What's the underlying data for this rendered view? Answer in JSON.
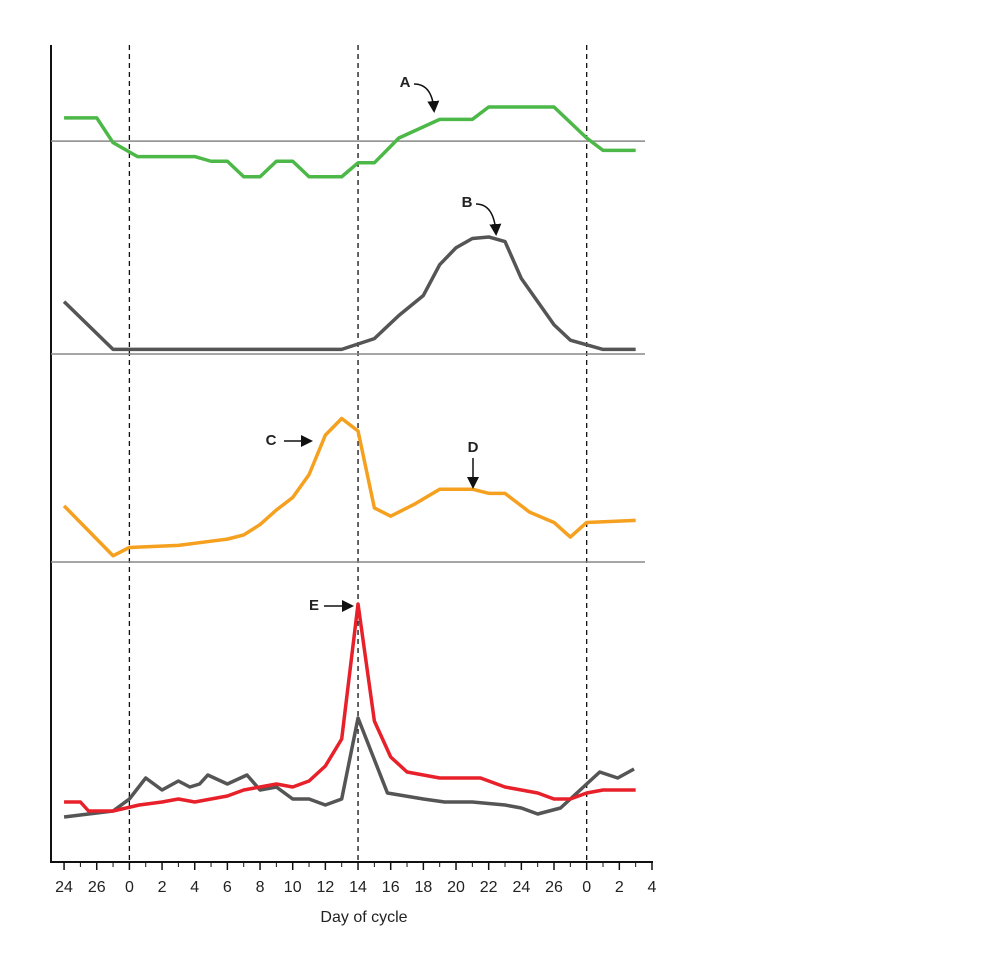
{
  "chart_data": [
    {
      "type": "line",
      "ylim": [
        0,
        100
      ],
      "hline": 38,
      "x": [
        -4,
        -2,
        -1,
        0.5,
        4,
        5,
        6,
        7,
        8,
        9,
        10,
        11,
        13,
        14,
        15,
        16.5,
        19,
        21,
        22,
        26,
        28,
        29,
        31
      ],
      "series": [
        {
          "color": "#4cb848",
          "values": [
            53,
            53,
            37,
            28,
            28,
            25,
            25,
            15,
            15,
            25,
            25,
            15,
            15,
            24,
            24,
            40,
            52,
            52,
            60,
            60,
            40,
            32,
            32
          ]
        }
      ],
      "annotations": [
        {
          "text": "A"
        }
      ]
    },
    {
      "type": "line",
      "ylim": [
        0,
        100
      ],
      "hline": 0,
      "x": [
        -4,
        -1,
        13,
        15,
        16.5,
        18,
        19,
        20,
        21,
        22,
        23,
        24,
        26,
        27,
        29,
        31
      ],
      "series": [
        {
          "color": "#555555",
          "values": [
            34,
            3,
            3,
            10,
            25,
            38,
            58,
            69,
            75,
            76,
            73,
            49,
            19,
            9,
            3,
            3
          ]
        }
      ],
      "annotations": [
        {
          "text": "B"
        }
      ]
    },
    {
      "type": "line",
      "ylim": [
        0,
        100
      ],
      "hline": 0,
      "x": [
        -4,
        -1,
        0,
        3,
        5,
        6,
        7,
        8,
        9,
        10,
        11,
        12,
        13,
        14,
        15,
        16,
        17.5,
        19,
        21,
        22,
        23,
        24.5,
        26,
        27,
        28,
        31
      ],
      "series": [
        {
          "color": "#f5a01e",
          "values": [
            27,
            3,
            7,
            8,
            10,
            11,
            13,
            18,
            25,
            31,
            42,
            61,
            69,
            63,
            26,
            22,
            28,
            35,
            35,
            33,
            33,
            24,
            19,
            12,
            19,
            20
          ]
        }
      ],
      "annotations": [
        {
          "text": "C"
        },
        {
          "text": "D"
        }
      ]
    },
    {
      "type": "line",
      "ylim": [
        0,
        100
      ],
      "x": [
        -4,
        -3,
        -2.5,
        -1,
        0.6,
        2,
        3,
        4,
        5,
        6,
        7,
        8,
        9,
        10,
        11,
        12,
        13,
        14,
        15,
        16,
        17,
        19,
        21.5,
        23,
        24,
        25,
        26,
        27,
        28,
        29,
        30,
        31
      ],
      "series": [
        {
          "color": "#e8202a",
          "values": [
            20,
            20,
            17,
            17,
            19,
            20,
            21,
            20,
            21,
            22,
            24,
            25,
            26,
            25,
            27,
            32,
            41,
            86,
            47,
            35,
            30,
            28,
            28,
            25,
            24,
            23,
            21,
            21,
            23,
            24,
            24,
            24
          ]
        }
      ],
      "series2": {
        "x": [
          -4,
          -1,
          0,
          1,
          2,
          3,
          3.7,
          4.3,
          4.8,
          6,
          7.2,
          8,
          9,
          10,
          11,
          12,
          13,
          14,
          15.8,
          18,
          19.3,
          21,
          23,
          24,
          25,
          26.4,
          28,
          28.8,
          29.9,
          30.9
        ],
        "color": "#555555",
        "values": [
          15,
          17,
          21,
          28,
          24,
          27,
          25,
          26,
          29,
          26,
          29,
          24,
          25,
          21,
          21,
          19,
          21,
          48,
          23,
          21,
          20,
          20,
          19,
          18,
          16,
          18,
          26,
          30,
          28,
          31
        ]
      },
      "annotations": [
        {
          "text": "E"
        }
      ],
      "xlim": [
        -4.8,
        32
      ],
      "vlines": [
        0,
        14,
        28
      ],
      "xticks": [
        {
          "value": -4,
          "label": "24"
        },
        {
          "value": -2,
          "label": "26"
        },
        0,
        2,
        4,
        6,
        8,
        10,
        12,
        14,
        16,
        18,
        20,
        22,
        {
          "value": 24,
          "label": "24"
        },
        {
          "value": 26,
          "label": "26"
        },
        {
          "value": 28,
          "label": "0"
        },
        {
          "value": 30,
          "label": "2"
        },
        {
          "value": 32,
          "label": "4"
        }
      ],
      "xminorticks": [
        -3,
        -1,
        1,
        3,
        5,
        7,
        9,
        11,
        13,
        15,
        17,
        19,
        21,
        23,
        25,
        27,
        29,
        31
      ],
      "xlabel": "Day of cycle"
    }
  ]
}
